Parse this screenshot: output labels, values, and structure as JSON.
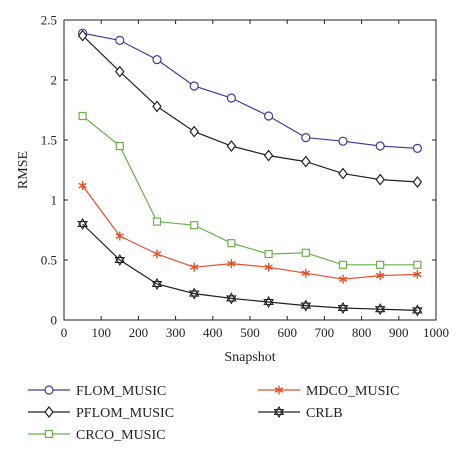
{
  "chart_data": {
    "type": "line",
    "xlabel": "Snapshot",
    "ylabel": "RMSE",
    "xlim": [
      0,
      1000
    ],
    "ylim": [
      0,
      2.5
    ],
    "xticks": [
      "0",
      "100",
      "200",
      "300",
      "400",
      "500",
      "600",
      "700",
      "800",
      "900",
      "1000"
    ],
    "yticks": [
      "0",
      "0.5",
      "1",
      "1.5",
      "2",
      "2.5"
    ],
    "grid": false,
    "legend_position": "bottom",
    "x": [
      50,
      150,
      250,
      350,
      450,
      550,
      650,
      750,
      850,
      950
    ],
    "series": [
      {
        "name": "FLOM_MUSIC",
        "marker": "circle",
        "color": "#3c3c9c",
        "values": [
          2.39,
          2.33,
          2.17,
          1.95,
          1.85,
          1.7,
          1.52,
          1.49,
          1.45,
          1.43
        ]
      },
      {
        "name": "PFLOM_MUSIC",
        "marker": "diamond",
        "color": "#222222",
        "values": [
          2.37,
          2.07,
          1.78,
          1.57,
          1.45,
          1.37,
          1.32,
          1.22,
          1.17,
          1.15
        ]
      },
      {
        "name": "CRCO_MUSIC",
        "marker": "square",
        "color": "#6ab04c",
        "values": [
          1.7,
          1.45,
          0.82,
          0.79,
          0.64,
          0.55,
          0.56,
          0.46,
          0.46,
          0.46
        ]
      },
      {
        "name": "MDCO_MUSIC",
        "marker": "asterisk",
        "color": "#e0502a",
        "values": [
          1.12,
          0.7,
          0.55,
          0.44,
          0.47,
          0.44,
          0.39,
          0.34,
          0.37,
          0.38
        ]
      },
      {
        "name": "CRLB",
        "marker": "hexagram",
        "color": "#222222",
        "values": [
          0.8,
          0.5,
          0.3,
          0.22,
          0.18,
          0.15,
          0.12,
          0.1,
          0.09,
          0.08
        ]
      }
    ]
  }
}
